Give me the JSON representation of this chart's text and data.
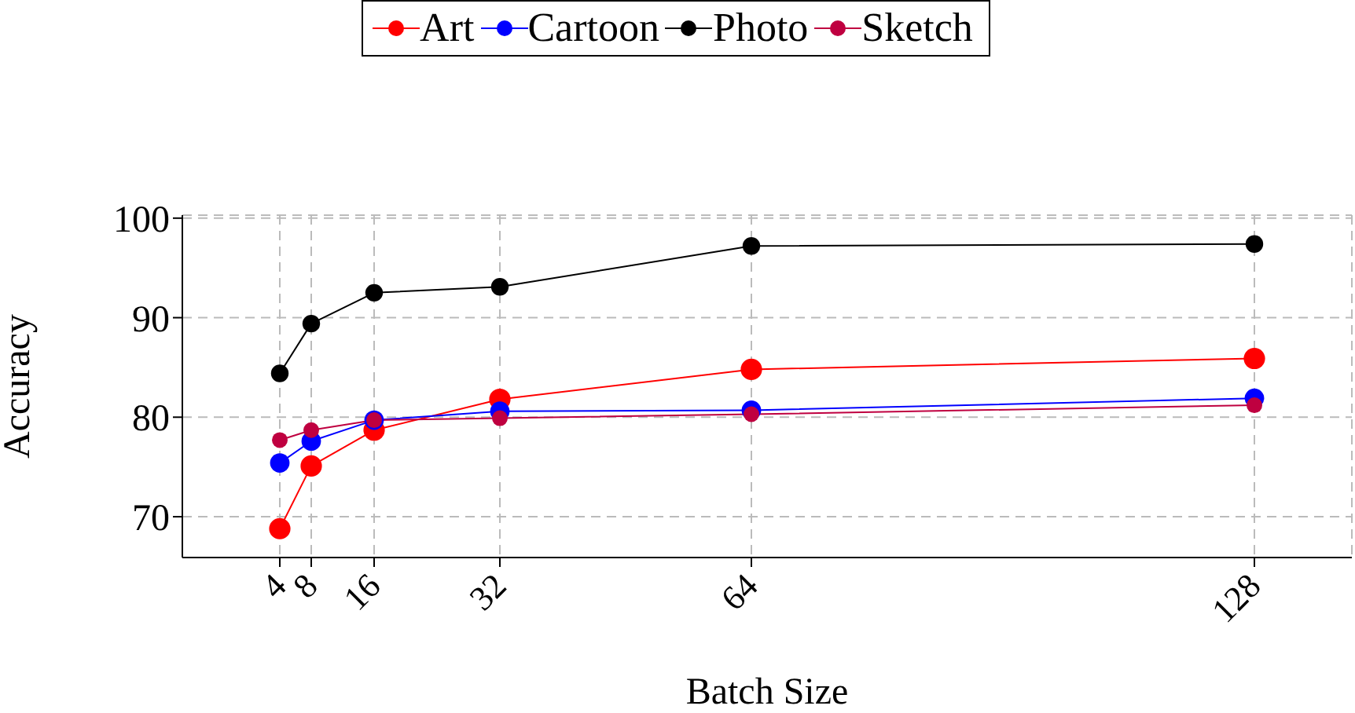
{
  "chart_data": {
    "type": "line",
    "xlabel": "Batch Size",
    "ylabel": "Accuracy",
    "x": [
      4,
      8,
      16,
      32,
      64,
      128
    ],
    "series": [
      {
        "name": "Art",
        "color": "#ff0000",
        "values": [
          68.8,
          75.1,
          78.7,
          81.8,
          84.8,
          85.9
        ]
      },
      {
        "name": "Cartoon",
        "color": "#0000ff",
        "values": [
          75.4,
          77.6,
          79.7,
          80.6,
          80.7,
          81.9
        ]
      },
      {
        "name": "Photo",
        "color": "#000000",
        "values": [
          84.4,
          89.4,
          92.5,
          93.1,
          97.2,
          97.4
        ]
      },
      {
        "name": "Sketch",
        "color": "#bf0040",
        "values": [
          77.7,
          78.7,
          79.7,
          79.9,
          80.3,
          81.2
        ]
      }
    ],
    "xlim": [
      -8.4,
      140.4
    ],
    "xticks": [
      4,
      8,
      16,
      32,
      64,
      128
    ],
    "ylim": [
      65.9,
      100.3
    ],
    "yticks": [
      70,
      80,
      90,
      100
    ],
    "grid": true,
    "legend": "top",
    "marker": "circle",
    "line_style": "solid"
  }
}
